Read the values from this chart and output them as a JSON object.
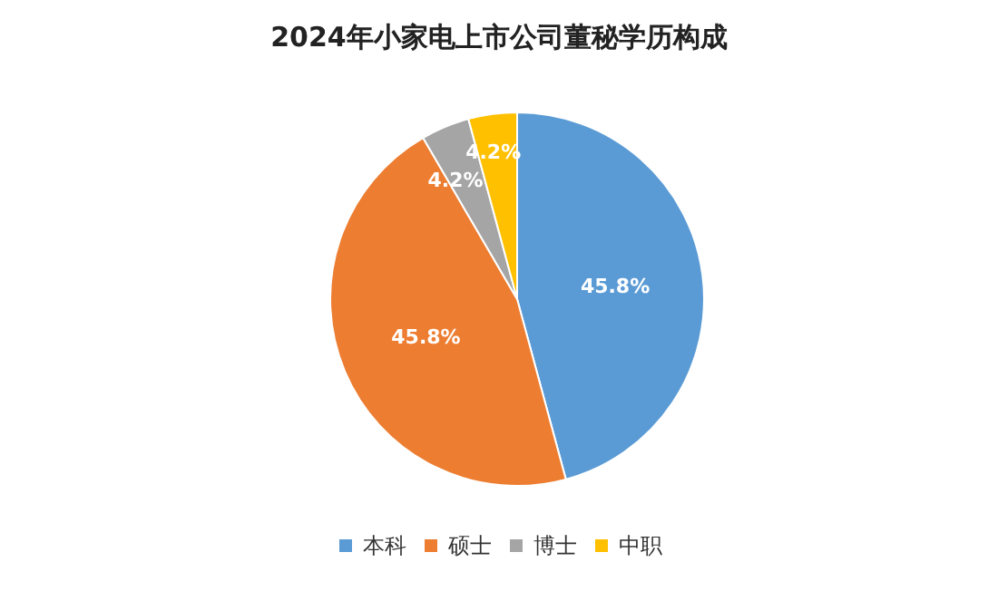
{
  "chart_data": {
    "type": "pie",
    "title": "2024年小家电上市公司董秘学历构成",
    "categories": [
      "本科",
      "硕士",
      "博士",
      "中职"
    ],
    "values": [
      45.8,
      45.8,
      4.2,
      4.2
    ],
    "colors": [
      "#5b9bd5",
      "#ed7d31",
      "#a5a5a5",
      "#ffc000"
    ],
    "value_labels": [
      "45.8%",
      "45.8%",
      "4.2%",
      "4.2%"
    ],
    "legend": "bottom"
  }
}
